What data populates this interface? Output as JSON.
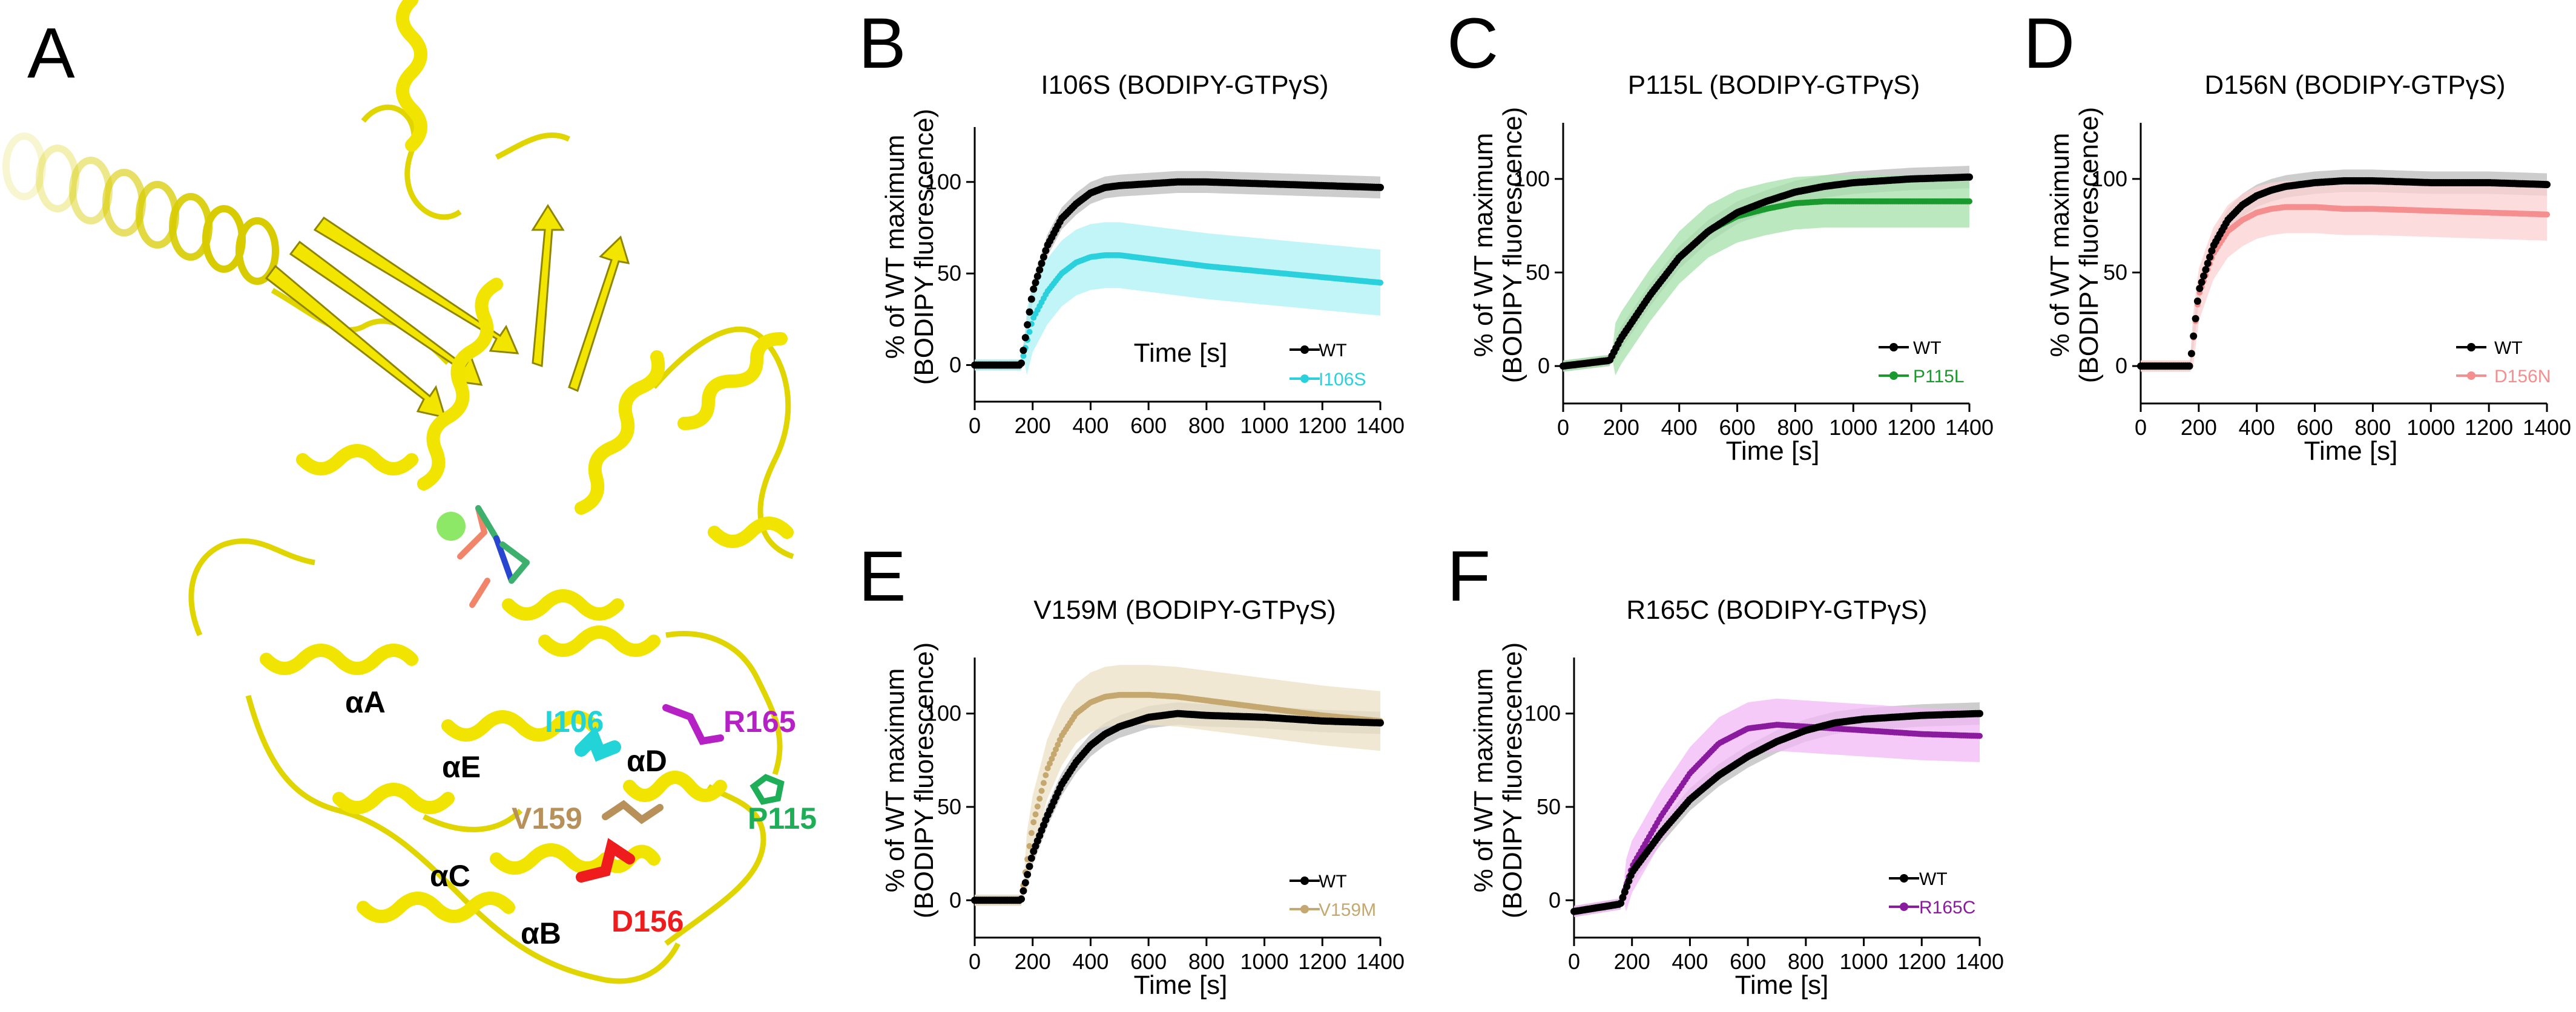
{
  "figure": {
    "panel_letters": [
      "A",
      "B",
      "C",
      "D",
      "E",
      "F"
    ],
    "structure": {
      "labels": [
        {
          "text": "αA",
          "color": "#000000"
        },
        {
          "text": "αE",
          "color": "#000000"
        },
        {
          "text": "αD",
          "color": "#000000"
        },
        {
          "text": "αC",
          "color": "#000000"
        },
        {
          "text": "αB",
          "color": "#000000"
        },
        {
          "text": "I106",
          "color": "#22d3d8"
        },
        {
          "text": "R165",
          "color": "#b621c6"
        },
        {
          "text": "P115",
          "color": "#1fae58"
        },
        {
          "text": "V159",
          "color": "#b8905a"
        },
        {
          "text": "D156",
          "color": "#ee1c1c"
        }
      ]
    }
  },
  "chart_data": [
    {
      "panel": "B",
      "type": "line",
      "title": "I106S (BODIPY-GTPγS)",
      "xlabel": "Time [s]",
      "ylabel": [
        "% of WT maximum",
        "(BODIPY fluorescence)"
      ],
      "xlim": [
        0,
        1400
      ],
      "ylim": [
        -20,
        130
      ],
      "xticks": [
        0,
        200,
        400,
        600,
        800,
        1000,
        1200,
        1400
      ],
      "yticks": [
        0,
        50,
        100
      ],
      "legend": {
        "position": "bottom-right"
      },
      "series": [
        {
          "name": "WT",
          "color": "#000000",
          "band": "#c8c8c8",
          "x": [
            0,
            160,
            200,
            250,
            300,
            350,
            400,
            450,
            500,
            600,
            700,
            800,
            1000,
            1200,
            1400
          ],
          "y": [
            0,
            0,
            40,
            65,
            80,
            88,
            94,
            97,
            98,
            99,
            100,
            100,
            99,
            98,
            97
          ],
          "err": 6
        },
        {
          "name": "I106S",
          "color": "#2ad1dc",
          "band": "#aef1f5",
          "x": [
            0,
            160,
            200,
            250,
            300,
            350,
            400,
            450,
            500,
            600,
            700,
            800,
            1000,
            1200,
            1400
          ],
          "y": [
            0,
            0,
            25,
            40,
            50,
            56,
            59,
            60,
            60,
            58,
            56,
            54,
            51,
            48,
            45
          ],
          "err": 18
        }
      ]
    },
    {
      "panel": "C",
      "type": "line",
      "title": "P115L (BODIPY-GTPγS)",
      "xlabel": "Time [s]",
      "ylabel": [
        "% of WT maximum",
        "(BODIPY fluorescence)"
      ],
      "xlim": [
        0,
        1400
      ],
      "ylim": [
        -20,
        130
      ],
      "xticks": [
        0,
        200,
        400,
        600,
        800,
        1000,
        1200,
        1400
      ],
      "yticks": [
        0,
        50,
        100
      ],
      "legend": {
        "position": "bottom-right"
      },
      "series": [
        {
          "name": "WT",
          "color": "#000000",
          "band": "#c8c8c8",
          "x": [
            0,
            160,
            200,
            300,
            400,
            500,
            600,
            700,
            800,
            900,
            1000,
            1200,
            1400
          ],
          "y": [
            0,
            3,
            15,
            38,
            58,
            72,
            82,
            88,
            93,
            96,
            98,
            100,
            101
          ],
          "err": 6
        },
        {
          "name": "P115L",
          "color": "#1a9a2e",
          "band": "#a4e0a9",
          "x": [
            0,
            160,
            200,
            300,
            400,
            500,
            600,
            700,
            800,
            900,
            1000,
            1200,
            1400
          ],
          "y": [
            0,
            3,
            15,
            38,
            58,
            72,
            80,
            84,
            87,
            88,
            88,
            88,
            88
          ],
          "err": 14
        }
      ]
    },
    {
      "panel": "D",
      "type": "line",
      "title": "D156N (BODIPY-GTPγS)",
      "xlabel": "Time [s]",
      "ylabel": [
        "% of WT maximum",
        "(BODIPY fluorescence)"
      ],
      "xlim": [
        0,
        1400
      ],
      "ylim": [
        -20,
        130
      ],
      "xticks": [
        0,
        200,
        400,
        600,
        800,
        1000,
        1200,
        1400
      ],
      "yticks": [
        0,
        50,
        100
      ],
      "legend": {
        "position": "bottom-right"
      },
      "series": [
        {
          "name": "WT",
          "color": "#000000",
          "band": "#c8c8c8",
          "x": [
            0,
            170,
            200,
            250,
            300,
            350,
            400,
            450,
            500,
            600,
            700,
            800,
            1000,
            1200,
            1400
          ],
          "y": [
            0,
            0,
            40,
            64,
            78,
            86,
            91,
            94,
            96,
            98,
            99,
            99,
            98,
            98,
            97
          ],
          "err": 6
        },
        {
          "name": "D156N",
          "color": "#f58e8e",
          "band": "#fbd0d0",
          "x": [
            0,
            170,
            200,
            250,
            300,
            350,
            400,
            450,
            500,
            600,
            700,
            800,
            1000,
            1200,
            1400
          ],
          "y": [
            0,
            0,
            38,
            60,
            72,
            78,
            82,
            84,
            85,
            85,
            84,
            84,
            83,
            82,
            81
          ],
          "err": 14
        }
      ]
    },
    {
      "panel": "E",
      "type": "line",
      "title": "V159M (BODIPY-GTPγS)",
      "xlabel": "Time [s]",
      "ylabel": [
        "% of WT maximum",
        "(BODIPY fluorescence)"
      ],
      "xlim": [
        0,
        1400
      ],
      "ylim": [
        -20,
        130
      ],
      "xticks": [
        0,
        200,
        400,
        600,
        800,
        1000,
        1200,
        1400
      ],
      "yticks": [
        0,
        50,
        100
      ],
      "legend": {
        "position": "bottom-right"
      },
      "series": [
        {
          "name": "WT",
          "color": "#000000",
          "band": "#c8c8c8",
          "x": [
            0,
            160,
            200,
            250,
            300,
            350,
            400,
            450,
            500,
            600,
            700,
            800,
            1000,
            1200,
            1400
          ],
          "y": [
            0,
            0,
            25,
            45,
            62,
            74,
            83,
            89,
            93,
            98,
            100,
            99,
            98,
            96,
            95
          ],
          "err": 6
        },
        {
          "name": "V159M",
          "color": "#c4a870",
          "band": "#ece0c4",
          "x": [
            0,
            160,
            200,
            250,
            300,
            350,
            400,
            450,
            500,
            600,
            700,
            800,
            1000,
            1200,
            1400
          ],
          "y": [
            0,
            0,
            40,
            70,
            88,
            100,
            106,
            109,
            110,
            110,
            109,
            107,
            103,
            99,
            96
          ],
          "err": 16
        }
      ]
    },
    {
      "panel": "F",
      "type": "line",
      "title": "R165C (BODIPY-GTPγS)",
      "xlabel": "Time [s]",
      "ylabel": [
        "% of WT maximum",
        "(BODIPY fluorescence)"
      ],
      "xlim": [
        0,
        1400
      ],
      "ylim": [
        -20,
        130
      ],
      "xticks": [
        0,
        200,
        400,
        600,
        800,
        1000,
        1200,
        1400
      ],
      "yticks": [
        0,
        50,
        100
      ],
      "legend": {
        "position": "bottom-right"
      },
      "series": [
        {
          "name": "WT",
          "color": "#000000",
          "band": "#c8c8c8",
          "x": [
            0,
            160,
            200,
            300,
            400,
            500,
            600,
            700,
            800,
            900,
            1000,
            1200,
            1400
          ],
          "y": [
            -6,
            -2,
            15,
            36,
            54,
            67,
            77,
            85,
            91,
            95,
            97,
            99,
            100
          ],
          "err": 6
        },
        {
          "name": "R165C",
          "color": "#8a1a9e",
          "band": "#f2b8f5",
          "x": [
            0,
            160,
            200,
            300,
            400,
            500,
            600,
            700,
            800,
            900,
            1000,
            1200,
            1400
          ],
          "y": [
            -6,
            -2,
            18,
            45,
            68,
            84,
            92,
            94,
            93,
            92,
            91,
            89,
            88
          ],
          "err": 14
        }
      ]
    }
  ]
}
